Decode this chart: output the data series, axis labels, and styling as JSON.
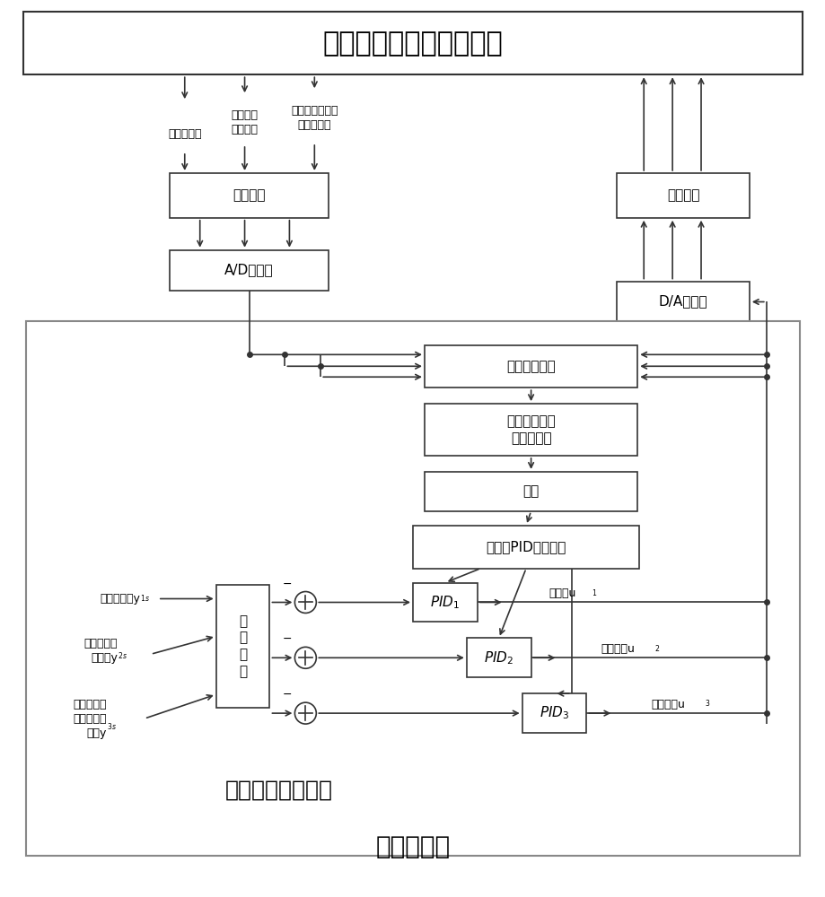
{
  "title_top": "循环流化床锅炉燃烧过程",
  "title_bottom": "微型计算机",
  "controller_label": "本发明方法控制器",
  "box_chuanganqi": "传感器组",
  "box_ad": "A/D转换器",
  "box_da": "D/A转换器",
  "box_zhixing": "执行器组",
  "box_moxing": "模型参数辨识",
  "box_duobianliang": "多变量广义预\n测控制优化",
  "box_jieou": "解耦",
  "box_pid_tuning": "多变量PID参数整定",
  "box_cankao": "参\n考\n轨\n迹",
  "label_chuwen": "床温实际值",
  "label_zhuyazheng": "主蒸汽压\n力实际值",
  "label_luqiang": "炉膛出口烟气含\n氧量实际值",
  "label_chuwen_set": "床温设定值y",
  "label_chuwen_sub": "1s",
  "label_zhuyazheng_set_l1": "主蒸汽压力",
  "label_zhuyazheng_set_l2": "设定值y",
  "label_zhuyazheng_sub": "2s",
  "label_luqiang_set_l1": "炉膛出口烟",
  "label_luqiang_set_l2": "气含氧量设",
  "label_luqiang_set_l3": "定值y",
  "label_luqiang_sub": "3s",
  "label_gei_mei": "给煤量u",
  "label_gei_mei_sub": "1",
  "label_yi_feng": "一次风量u",
  "label_yi_feng_sub": "2",
  "label_er_feng": "二次风量u",
  "label_er_feng_sub": "3",
  "bg_color": "#ffffff",
  "lc": "#333333",
  "lw": 1.2
}
